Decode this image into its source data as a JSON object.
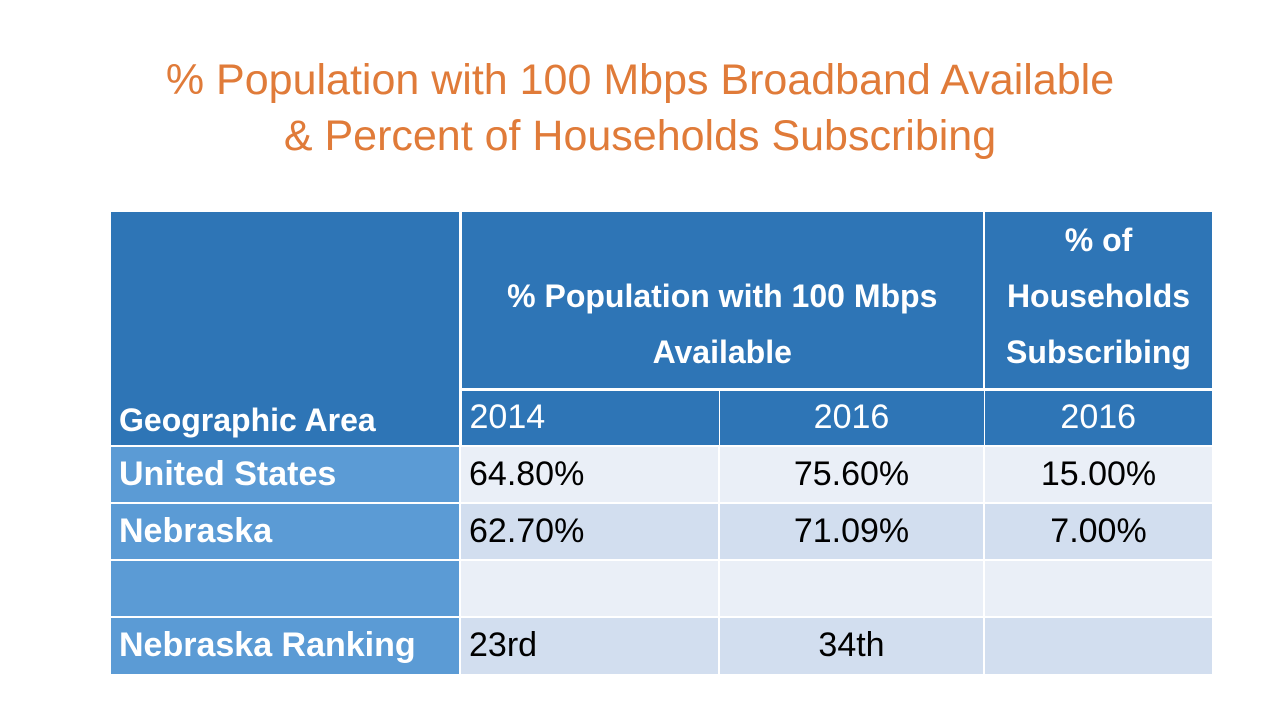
{
  "slide": {
    "title_line1": "% Population with 100 Mbps Broadband Available",
    "title_line2": "& Percent of Households Subscribing"
  },
  "table": {
    "header_area": "Geographic Area",
    "header_population": "% Population with 100 Mbps Available",
    "header_subscribing": "% of Households Subscribing",
    "years": [
      "2014",
      "2016",
      "2016"
    ],
    "rows": [
      {
        "label": "United States",
        "values": [
          "64.80%",
          "75.60%",
          "15.00%"
        ]
      },
      {
        "label": "Nebraska",
        "values": [
          "62.70%",
          "71.09%",
          "7.00%"
        ]
      },
      {
        "label": "",
        "values": [
          "",
          "",
          ""
        ]
      },
      {
        "label": "Nebraska Ranking",
        "values": [
          "23rd",
          "34th",
          ""
        ]
      }
    ]
  },
  "colors": {
    "title": "#e07b39",
    "header_bg": "#2e75b6",
    "row_label_bg": "#5b9bd5",
    "band_light": "#eaeff7",
    "band_dark": "#d2deef"
  }
}
